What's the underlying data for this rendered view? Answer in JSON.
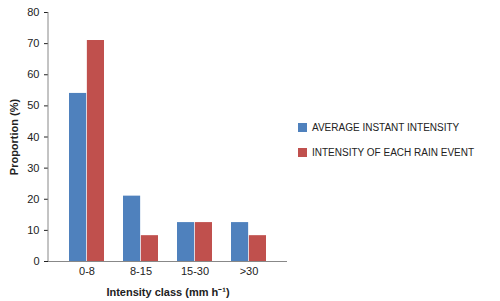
{
  "chart_data": {
    "type": "bar",
    "x_label": "Intensity class (mm h⁻¹)",
    "y_label": "Proportion (%)",
    "categories": [
      "0-8",
      "8-15",
      "15-30",
      ">30"
    ],
    "series": [
      {
        "name": "AVERAGE INSTANT INTENSITY",
        "color": "#4f81bd",
        "values": [
          54,
          21,
          12.5,
          12.5
        ]
      },
      {
        "name": "INTENSITY OF EACH RAIN EVENT",
        "color": "#c0504d",
        "values": [
          71,
          8.3,
          12.5,
          8.3
        ]
      }
    ],
    "ylim": [
      0,
      80
    ],
    "yticks": [
      0,
      10,
      20,
      30,
      40,
      50,
      60,
      70,
      80
    ],
    "grid": false,
    "legend": "right"
  }
}
